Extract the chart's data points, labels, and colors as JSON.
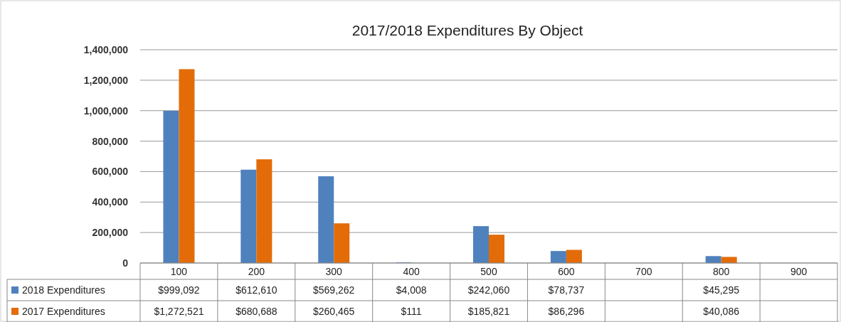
{
  "chart_data": {
    "type": "bar",
    "title": "2017/2018 Expenditures By Object",
    "categories": [
      "100",
      "200",
      "300",
      "400",
      "500",
      "600",
      "700",
      "800",
      "900"
    ],
    "series": [
      {
        "name": "2018 Expenditures",
        "color": "#4f81bd",
        "values": [
          999092,
          612610,
          569262,
          4008,
          242060,
          78737,
          null,
          45295,
          null
        ],
        "value_labels": [
          "$999,092",
          "$612,610",
          "$569,262",
          "$4,008",
          "$242,060",
          "$78,737",
          null,
          "$45,295",
          null
        ]
      },
      {
        "name": "2017 Expenditures",
        "color": "#e36c09",
        "values": [
          1272521,
          680688,
          260465,
          111,
          185821,
          86296,
          null,
          40086,
          null
        ],
        "value_labels": [
          "$1,272,521",
          "$680,688",
          "$260,465",
          "$111",
          "$185,821",
          "$86,296",
          null,
          "$40,086",
          null
        ]
      }
    ],
    "ylim": [
      0,
      1400000
    ],
    "yticks": [
      {
        "value": 0,
        "label": "0"
      },
      {
        "value": 200000,
        "label": "200,000"
      },
      {
        "value": 400000,
        "label": "400,000"
      },
      {
        "value": 600000,
        "label": "600,000"
      },
      {
        "value": 800000,
        "label": "800,000"
      },
      {
        "value": 1000000,
        "label": "1,000,000"
      },
      {
        "value": 1200000,
        "label": "1,200,000"
      },
      {
        "value": 1400000,
        "label": "1,400,000"
      }
    ],
    "grid": "y",
    "legend": "bottom"
  }
}
